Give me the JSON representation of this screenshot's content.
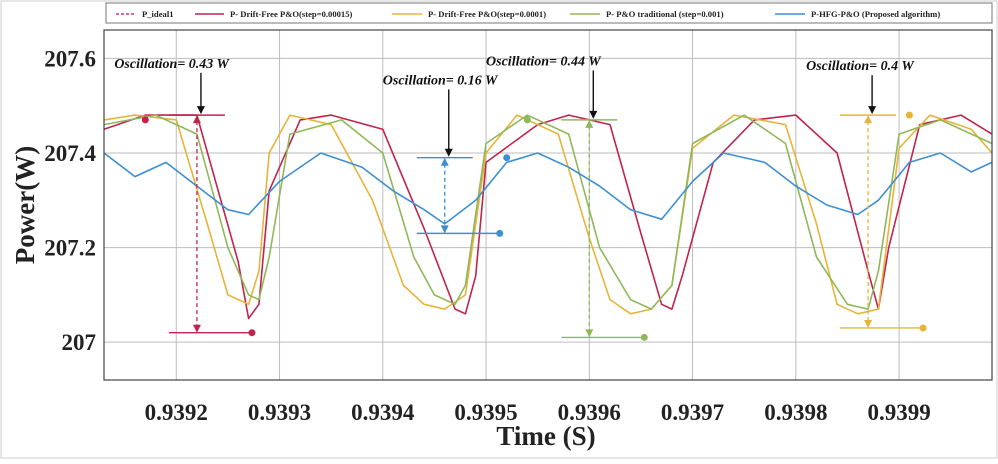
{
  "chart_data": {
    "type": "line",
    "title": "",
    "xlabel": "Time (S)",
    "ylabel": "Power(W)",
    "xlim": [
      0.93913,
      0.93999
    ],
    "ylim": [
      206.92,
      207.66
    ],
    "x_ticks": [
      0.9392,
      0.9393,
      0.9394,
      0.9395,
      0.9396,
      0.9397,
      0.9398,
      0.9399
    ],
    "y_ticks": [
      207,
      207.2,
      207.4,
      207.6
    ],
    "x_tick_labels": [
      "0.9392",
      "0.9393",
      "0.9394",
      "0.9395",
      "0.9396",
      "0.9397",
      "0.9398",
      "0.9399"
    ],
    "y_tick_labels": [
      "207",
      "207.2",
      "207.4",
      "207.6"
    ],
    "grid": true,
    "legend_position": "top",
    "legend": [
      {
        "label": "P_ideal1",
        "color": "#c0397a",
        "dashed": true
      },
      {
        "label": "P- Drift-Free P&O(step=0.00015)",
        "color": "#c0234e",
        "dashed": false
      },
      {
        "label": "P- Drift-Free P&O(step=0.0001)",
        "color": "#e8b33a",
        "dashed": false
      },
      {
        "label": "P- P&O traditional (step=0.001)",
        "color": "#8fb85a",
        "dashed": false
      },
      {
        "label": "P-HFG-P&O (Proposed algorithm)",
        "color": "#3d8fd0",
        "dashed": false
      }
    ],
    "series": [
      {
        "name": "P- Drift-Free P&O(step=0.00015)",
        "color": "#c0234e",
        "x": [
          0.93913,
          0.93917,
          0.93922,
          0.93926,
          0.93927,
          0.93928,
          0.93929,
          0.93932,
          0.93935,
          0.9394,
          0.93944,
          0.93947,
          0.93948,
          0.93949,
          0.9395,
          0.93955,
          0.93958,
          0.93962,
          0.93965,
          0.93967,
          0.93968,
          0.93969,
          0.93972,
          0.93976,
          0.9398,
          0.93984,
          0.93987,
          0.93988,
          0.93989,
          0.93992,
          0.93996,
          0.93999
        ],
        "y": [
          207.45,
          207.48,
          207.48,
          207.17,
          207.05,
          207.08,
          207.32,
          207.47,
          207.48,
          207.45,
          207.24,
          207.07,
          207.06,
          207.14,
          207.38,
          207.46,
          207.48,
          207.46,
          207.23,
          207.08,
          207.07,
          207.14,
          207.38,
          207.47,
          207.48,
          207.4,
          207.15,
          207.07,
          207.2,
          207.46,
          207.48,
          207.44
        ]
      },
      {
        "name": "P- Drift-Free P&O(step=0.0001)",
        "color": "#e8b33a",
        "x": [
          0.93913,
          0.93916,
          0.9392,
          0.93923,
          0.93925,
          0.93927,
          0.93928,
          0.93929,
          0.93931,
          0.93935,
          0.93939,
          0.93942,
          0.93944,
          0.93946,
          0.93948,
          0.9395,
          0.93953,
          0.93957,
          0.9396,
          0.93962,
          0.93964,
          0.93966,
          0.93968,
          0.9397,
          0.93974,
          0.93979,
          0.93982,
          0.93984,
          0.93986,
          0.93988,
          0.9399,
          0.93993,
          0.93997,
          0.93999
        ],
        "y": [
          207.47,
          207.48,
          207.47,
          207.25,
          207.1,
          207.08,
          207.15,
          207.4,
          207.48,
          207.46,
          207.3,
          207.12,
          207.08,
          207.07,
          207.1,
          207.4,
          207.48,
          207.44,
          207.22,
          207.09,
          207.06,
          207.07,
          207.12,
          207.41,
          207.48,
          207.46,
          207.25,
          207.08,
          207.06,
          207.07,
          207.41,
          207.48,
          207.45,
          207.4
        ]
      },
      {
        "name": "P- P&O traditional (step=0.001)",
        "color": "#8fb85a",
        "x": [
          0.93913,
          0.93918,
          0.93922,
          0.93925,
          0.93927,
          0.93928,
          0.93929,
          0.93931,
          0.93936,
          0.9394,
          0.93943,
          0.93945,
          0.93947,
          0.93948,
          0.9395,
          0.93954,
          0.93958,
          0.93961,
          0.93964,
          0.93966,
          0.93968,
          0.9397,
          0.93975,
          0.93979,
          0.93982,
          0.93985,
          0.93987,
          0.93988,
          0.9399,
          0.93994,
          0.93999
        ],
        "y": [
          207.46,
          207.48,
          207.44,
          207.2,
          207.1,
          207.09,
          207.18,
          207.44,
          207.47,
          207.4,
          207.18,
          207.1,
          207.08,
          207.12,
          207.42,
          207.48,
          207.44,
          207.2,
          207.09,
          207.07,
          207.12,
          207.42,
          207.48,
          207.42,
          207.18,
          207.08,
          207.07,
          207.15,
          207.44,
          207.47,
          207.42
        ]
      },
      {
        "name": "P-HFG-P&O (Proposed algorithm)",
        "color": "#3d8fd0",
        "x": [
          0.93913,
          0.93916,
          0.93919,
          0.93922,
          0.93925,
          0.93927,
          0.9393,
          0.93934,
          0.93938,
          0.93941,
          0.93944,
          0.93946,
          0.93949,
          0.93952,
          0.93955,
          0.93958,
          0.93961,
          0.93964,
          0.93967,
          0.9397,
          0.93973,
          0.93977,
          0.9398,
          0.93983,
          0.93986,
          0.93988,
          0.93991,
          0.93994,
          0.93997,
          0.93999
        ],
        "y": [
          207.4,
          207.35,
          207.38,
          207.33,
          207.28,
          207.27,
          207.34,
          207.4,
          207.37,
          207.32,
          207.28,
          207.25,
          207.3,
          207.38,
          207.4,
          207.37,
          207.33,
          207.28,
          207.26,
          207.34,
          207.4,
          207.38,
          207.33,
          207.29,
          207.27,
          207.3,
          207.38,
          207.4,
          207.36,
          207.38
        ]
      }
    ],
    "annotations": [
      {
        "label": "Oscillation= 0.43 W",
        "x": 0.93922,
        "y_top": 207.48,
        "y_bottom": 207.02,
        "color": "#c0234e",
        "text_x": 0.93914,
        "text_y": 207.58,
        "dot_x": 0.93917,
        "dot_y": 207.47
      },
      {
        "label": "Oscillation= 0.16 W",
        "x": 0.93946,
        "y_top": 207.39,
        "y_bottom": 207.23,
        "color": "#3d8fd0",
        "text_x": 0.9394,
        "text_y": 207.545,
        "dot_x": 0.93952,
        "dot_y": 207.39
      },
      {
        "label": "Oscillation= 0.44 W",
        "x": 0.9396,
        "y_top": 207.47,
        "y_bottom": 207.01,
        "color": "#8fb85a",
        "text_x": 0.9395,
        "text_y": 207.585,
        "dot_x": 0.93954,
        "dot_y": 207.47
      },
      {
        "label": "Oscillation= 0.4 W",
        "x": 0.93987,
        "y_top": 207.48,
        "y_bottom": 207.03,
        "color": "#e8b33a",
        "text_x": 0.93981,
        "text_y": 207.575,
        "dot_x": 0.93991,
        "dot_y": 207.48
      }
    ]
  }
}
